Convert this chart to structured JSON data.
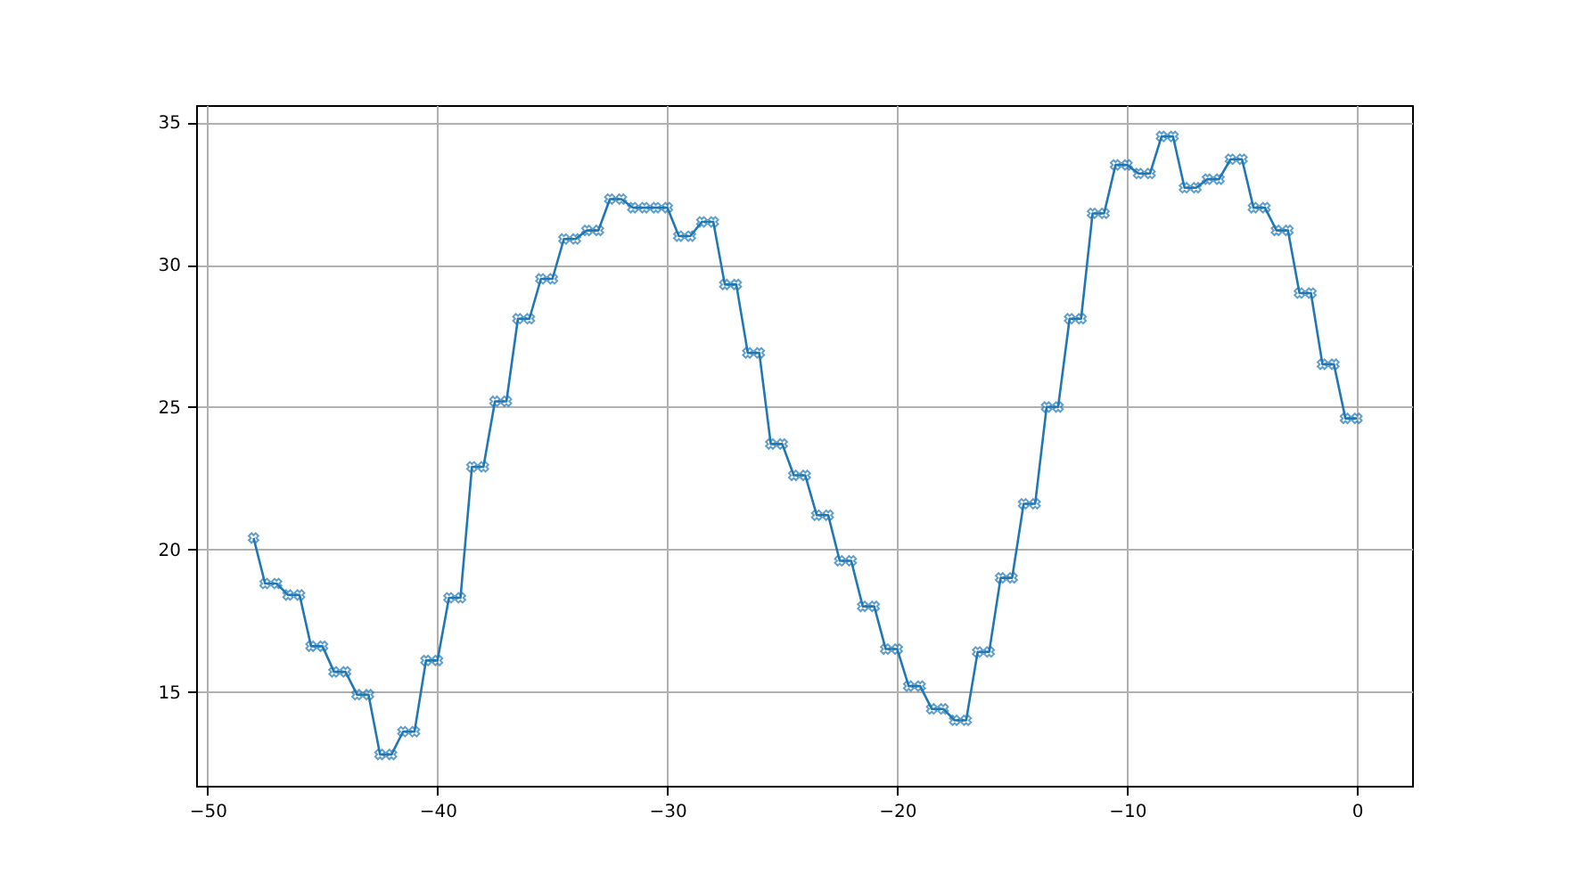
{
  "chart_data": {
    "type": "line",
    "marker": "cross",
    "grid": true,
    "line_style": "solid",
    "xlim": [
      -50.5,
      2.4
    ],
    "ylim": [
      11.7,
      35.6
    ],
    "xticks": [
      -50,
      -40,
      -30,
      -20,
      -10,
      0
    ],
    "yticks": [
      15,
      20,
      25,
      30,
      35
    ],
    "series": [
      {
        "color": "#1f77b4",
        "x": [
          -48,
          -47.5,
          -47,
          -46.5,
          -46,
          -45.5,
          -45,
          -44.5,
          -44,
          -43.5,
          -43,
          -42.5,
          -42,
          -41.5,
          -41,
          -40.5,
          -40,
          -39.5,
          -39,
          -38.5,
          -38,
          -37.5,
          -37,
          -36.5,
          -36,
          -35.5,
          -35,
          -34.5,
          -34,
          -33.5,
          -33,
          -32.5,
          -32,
          -31.5,
          -31,
          -30.5,
          -30,
          -29.5,
          -29,
          -28.5,
          -28,
          -27.5,
          -27,
          -26.5,
          -26,
          -25.5,
          -25,
          -24.5,
          -24,
          -23.5,
          -23,
          -22.5,
          -22,
          -21.5,
          -21,
          -20.5,
          -20,
          -19.5,
          -19,
          -18.5,
          -18,
          -17.5,
          -17,
          -16.5,
          -16,
          -15.5,
          -15,
          -14.5,
          -14,
          -13.5,
          -13,
          -12.5,
          -12,
          -11.5,
          -11,
          -10.5,
          -10,
          -9.5,
          -9,
          -8.5,
          -8,
          -7.5,
          -7,
          -6.5,
          -6,
          -5.5,
          -5,
          -4.5,
          -4,
          -3.5,
          -3,
          -2.5,
          -2,
          -1.5,
          -1,
          -0.5,
          0
        ],
        "values": [
          20.4,
          18.8,
          18.8,
          18.4,
          18.4,
          16.6,
          16.6,
          15.7,
          15.7,
          14.9,
          14.9,
          12.8,
          12.8,
          13.6,
          13.6,
          16.1,
          16.1,
          18.3,
          18.3,
          22.9,
          22.9,
          25.2,
          25.2,
          28.1,
          28.1,
          29.5,
          29.5,
          30.9,
          30.9,
          31.2,
          31.2,
          32.3,
          32.3,
          32.0,
          32.0,
          32.0,
          32.0,
          31.0,
          31.0,
          31.5,
          31.5,
          29.3,
          29.3,
          26.9,
          26.9,
          23.7,
          23.7,
          22.6,
          22.6,
          21.2,
          21.2,
          19.6,
          19.6,
          18.0,
          18.0,
          16.5,
          16.5,
          15.2,
          15.2,
          14.4,
          14.4,
          14.0,
          14.0,
          16.4,
          16.4,
          19.0,
          19.0,
          21.6,
          21.6,
          25.0,
          25.0,
          28.1,
          28.1,
          31.8,
          31.8,
          33.5,
          33.5,
          33.2,
          33.2,
          34.5,
          34.5,
          32.7,
          32.7,
          33.0,
          33.0,
          33.7,
          33.7,
          32.0,
          32.0,
          31.2,
          31.2,
          29.0,
          29.0,
          26.5,
          26.5,
          24.6,
          24.6
        ]
      }
    ]
  }
}
